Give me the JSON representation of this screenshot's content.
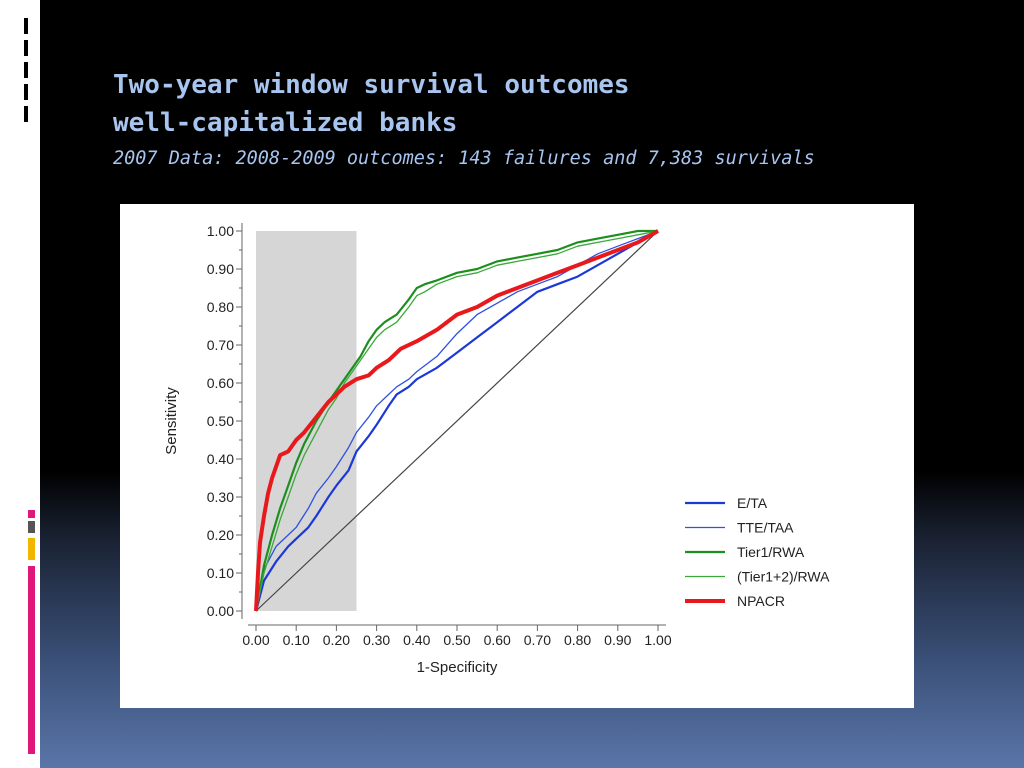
{
  "slide": {
    "title_line1": "Two-year window survival outcomes",
    "title_line2": "well-capitalized banks",
    "subtitle": "2007 Data: 2008-2009 outcomes: 143 failures and 7,383 survivals"
  },
  "chart_data": {
    "type": "line",
    "xlabel": "1-Specificity",
    "ylabel": "Sensitivity",
    "xlim": [
      0,
      1
    ],
    "ylim": [
      0,
      1
    ],
    "x_ticks": [
      "0.00",
      "0.10",
      "0.20",
      "0.30",
      "0.40",
      "0.50",
      "0.60",
      "0.70",
      "0.80",
      "0.90",
      "1.00"
    ],
    "y_ticks": [
      "0.00",
      "0.10",
      "0.20",
      "0.30",
      "0.40",
      "0.50",
      "0.60",
      "0.70",
      "0.80",
      "0.90",
      "1.00"
    ],
    "shaded_region": {
      "x": [
        0,
        0.25
      ],
      "color": "#d6d6d6"
    },
    "reference_line": {
      "x": [
        0,
        1
      ],
      "y": [
        0,
        1
      ],
      "color": "#444444"
    },
    "legend_position": "bottom-right",
    "series": [
      {
        "name": "E/TA",
        "color": "#1c39d6",
        "width": 2.2,
        "x": [
          0,
          0.02,
          0.05,
          0.08,
          0.1,
          0.13,
          0.15,
          0.18,
          0.2,
          0.23,
          0.25,
          0.28,
          0.3,
          0.33,
          0.35,
          0.38,
          0.4,
          0.45,
          0.5,
          0.55,
          0.6,
          0.65,
          0.7,
          0.75,
          0.8,
          0.85,
          0.9,
          0.95,
          1.0
        ],
        "y": [
          0,
          0.08,
          0.13,
          0.17,
          0.19,
          0.22,
          0.25,
          0.3,
          0.33,
          0.37,
          0.42,
          0.46,
          0.49,
          0.54,
          0.57,
          0.59,
          0.61,
          0.64,
          0.68,
          0.72,
          0.76,
          0.8,
          0.84,
          0.86,
          0.88,
          0.91,
          0.94,
          0.97,
          1.0
        ]
      },
      {
        "name": "TTE/TAA",
        "color": "#3050e0",
        "width": 1.3,
        "x": [
          0,
          0.02,
          0.05,
          0.08,
          0.1,
          0.13,
          0.15,
          0.18,
          0.2,
          0.23,
          0.25,
          0.28,
          0.3,
          0.33,
          0.35,
          0.38,
          0.4,
          0.45,
          0.5,
          0.55,
          0.6,
          0.65,
          0.7,
          0.75,
          0.8,
          0.85,
          0.9,
          0.95,
          1.0
        ],
        "y": [
          0,
          0.11,
          0.17,
          0.2,
          0.22,
          0.27,
          0.31,
          0.35,
          0.38,
          0.43,
          0.47,
          0.51,
          0.54,
          0.57,
          0.59,
          0.61,
          0.63,
          0.67,
          0.73,
          0.78,
          0.81,
          0.84,
          0.86,
          0.88,
          0.91,
          0.94,
          0.96,
          0.98,
          1.0
        ]
      },
      {
        "name": "Tier1/RWA",
        "color": "#1e8f1e",
        "width": 2.2,
        "x": [
          0,
          0.01,
          0.02,
          0.04,
          0.06,
          0.08,
          0.1,
          0.12,
          0.15,
          0.18,
          0.2,
          0.22,
          0.24,
          0.26,
          0.28,
          0.3,
          0.32,
          0.35,
          0.38,
          0.4,
          0.42,
          0.45,
          0.5,
          0.55,
          0.6,
          0.65,
          0.7,
          0.75,
          0.8,
          0.85,
          0.9,
          0.95,
          1.0
        ],
        "y": [
          0,
          0.06,
          0.12,
          0.2,
          0.27,
          0.33,
          0.39,
          0.44,
          0.5,
          0.55,
          0.58,
          0.61,
          0.64,
          0.67,
          0.71,
          0.74,
          0.76,
          0.78,
          0.82,
          0.85,
          0.86,
          0.87,
          0.89,
          0.9,
          0.92,
          0.93,
          0.94,
          0.95,
          0.97,
          0.98,
          0.99,
          1.0,
          1.0
        ]
      },
      {
        "name": "(Tier1+2)/RWA",
        "color": "#3aa83a",
        "width": 1.3,
        "x": [
          0,
          0.01,
          0.02,
          0.04,
          0.06,
          0.08,
          0.1,
          0.12,
          0.15,
          0.18,
          0.2,
          0.22,
          0.24,
          0.26,
          0.28,
          0.3,
          0.32,
          0.35,
          0.38,
          0.4,
          0.42,
          0.45,
          0.5,
          0.55,
          0.6,
          0.65,
          0.7,
          0.75,
          0.8,
          0.85,
          0.9,
          0.95,
          1.0
        ],
        "y": [
          0,
          0.05,
          0.1,
          0.17,
          0.24,
          0.3,
          0.36,
          0.41,
          0.47,
          0.53,
          0.56,
          0.6,
          0.63,
          0.66,
          0.69,
          0.72,
          0.74,
          0.76,
          0.8,
          0.83,
          0.84,
          0.86,
          0.88,
          0.89,
          0.91,
          0.92,
          0.93,
          0.94,
          0.96,
          0.97,
          0.98,
          0.99,
          1.0
        ]
      },
      {
        "name": "NPACR",
        "color": "#e8191c",
        "width": 4,
        "x": [
          0,
          0.005,
          0.01,
          0.02,
          0.03,
          0.04,
          0.05,
          0.06,
          0.08,
          0.1,
          0.12,
          0.15,
          0.18,
          0.2,
          0.22,
          0.25,
          0.28,
          0.3,
          0.33,
          0.36,
          0.4,
          0.45,
          0.5,
          0.55,
          0.6,
          0.65,
          0.7,
          0.75,
          0.8,
          0.85,
          0.9,
          0.95,
          1.0
        ],
        "y": [
          0,
          0.1,
          0.18,
          0.25,
          0.31,
          0.35,
          0.38,
          0.41,
          0.42,
          0.45,
          0.47,
          0.51,
          0.55,
          0.57,
          0.59,
          0.61,
          0.62,
          0.64,
          0.66,
          0.69,
          0.71,
          0.74,
          0.78,
          0.8,
          0.83,
          0.85,
          0.87,
          0.89,
          0.91,
          0.93,
          0.95,
          0.97,
          1.0
        ]
      }
    ]
  }
}
